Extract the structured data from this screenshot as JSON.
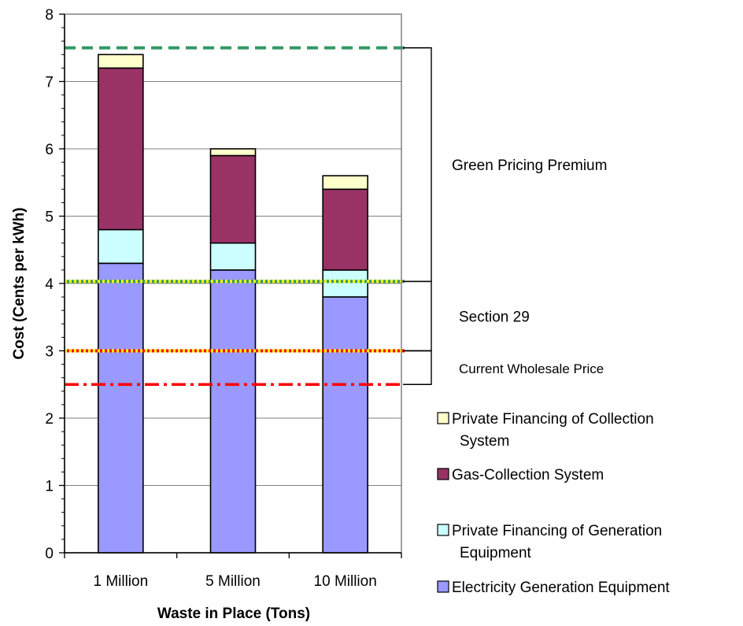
{
  "chart_data": {
    "type": "bar",
    "stacked": true,
    "categories": [
      "1 Million",
      "5 Million",
      "10 Million"
    ],
    "series": [
      {
        "name": "Electricity Generation Equipment",
        "color": "#9999ff",
        "values": [
          4.3,
          4.2,
          3.8
        ]
      },
      {
        "name": "Private Financing of Generation Equipment",
        "color": "#ccffff",
        "values": [
          0.5,
          0.4,
          0.4
        ]
      },
      {
        "name": "Gas-Collection System",
        "color": "#993366",
        "values": [
          2.4,
          1.3,
          1.2
        ]
      },
      {
        "name": "Private Financing of Collection System",
        "color": "#ffffcc",
        "values": [
          0.2,
          0.1,
          0.2
        ]
      }
    ],
    "xlabel": "Waste in Place (Tons)",
    "ylabel": "Cost (Cents per kWh)",
    "ylim": [
      0,
      8
    ],
    "yticks": [
      "0",
      "1",
      "2",
      "3",
      "4",
      "5",
      "6",
      "7",
      "8"
    ],
    "grid": true,
    "reference_lines": [
      {
        "value": 7.5,
        "style": "dashed",
        "color": "#339966"
      },
      {
        "value": 4.03,
        "style": "dotted",
        "color": "#ffff00",
        "under_color": "#339966"
      },
      {
        "value": 3.0,
        "style": "dotted",
        "color": "#ffff00",
        "under_color": "#ff0000"
      },
      {
        "value": 2.5,
        "style": "dash-dot",
        "color": "#ff0000"
      }
    ],
    "brackets": [
      {
        "from": 4.03,
        "to": 7.5,
        "label": "Green Pricing Premium"
      },
      {
        "from": 3.0,
        "to": 4.03,
        "label": "Section 29"
      },
      {
        "from": 2.5,
        "to": 3.0,
        "label": "Current Wholesale Price"
      }
    ],
    "legend": {
      "placement": "right",
      "entries": [
        {
          "label_lines": [
            "Private Financing of Collection",
            "System"
          ],
          "color": "#ffffcc"
        },
        {
          "label_lines": [
            "Gas-Collection System"
          ],
          "color": "#993366"
        },
        {
          "label_lines": [
            "Private Financing of Generation",
            "Equipment"
          ],
          "color": "#ccffff"
        },
        {
          "label_lines": [
            "Electricity Generation Equipment"
          ],
          "color": "#9999ff"
        }
      ]
    }
  }
}
